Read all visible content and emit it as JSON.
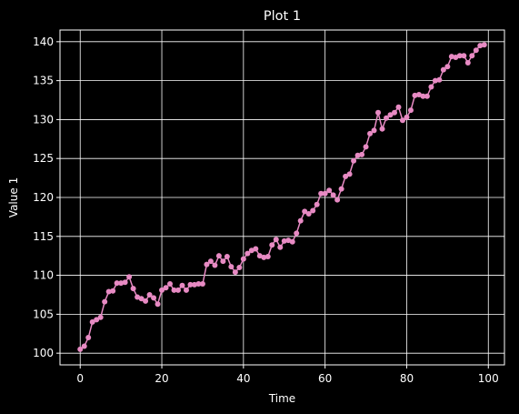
{
  "colors": {
    "background": "#000000",
    "grid": "#ffffff",
    "axes": "#ffffff",
    "series": "#e78ac3"
  },
  "chart_data": {
    "type": "line",
    "title": "Plot 1",
    "xlabel": "Time",
    "ylabel": "Value 1",
    "xlim": [
      -4.95,
      103.95
    ],
    "ylim": [
      98.5,
      141.5
    ],
    "xticks": [
      0,
      20,
      40,
      60,
      80,
      100
    ],
    "yticks": [
      100,
      105,
      110,
      115,
      120,
      125,
      130,
      135,
      140
    ],
    "grid": true,
    "legend": "none",
    "markers": true,
    "series": [
      {
        "x": [
          0,
          1,
          2,
          3,
          4,
          5,
          6,
          7,
          8,
          9,
          10,
          11,
          12,
          13,
          14,
          15,
          16,
          17,
          18,
          19,
          20,
          21,
          22,
          23,
          24,
          25,
          26,
          27,
          28,
          29,
          30,
          31,
          32,
          33,
          34,
          35,
          36,
          37,
          38,
          39,
          40,
          41,
          42,
          43,
          44,
          45,
          46,
          47,
          48,
          49,
          50,
          51,
          52,
          53,
          54,
          55,
          56,
          57,
          58,
          59,
          60,
          61,
          62,
          63,
          64,
          65,
          66,
          67,
          68,
          69,
          70,
          71,
          72,
          73,
          74,
          75,
          76,
          77,
          78,
          79,
          80,
          81,
          82,
          83,
          84,
          85,
          86,
          87,
          88,
          89,
          90,
          91,
          92,
          93,
          94,
          95,
          96,
          97,
          98,
          99
        ],
        "values": [
          100.5,
          100.9,
          102.0,
          104.0,
          104.3,
          104.6,
          106.6,
          107.9,
          108.0,
          109.0,
          109.0,
          109.1,
          109.8,
          108.3,
          107.2,
          107.0,
          106.7,
          107.5,
          107.1,
          106.3,
          108.1,
          108.4,
          108.9,
          108.1,
          108.1,
          108.7,
          108.1,
          108.8,
          108.8,
          108.9,
          108.9,
          111.4,
          111.8,
          111.3,
          112.5,
          111.8,
          112.4,
          111.1,
          110.4,
          111.0,
          112.1,
          112.8,
          113.2,
          113.4,
          112.5,
          112.3,
          112.4,
          113.9,
          114.6,
          113.6,
          114.4,
          114.5,
          114.3,
          115.4,
          117.0,
          118.2,
          117.9,
          118.3,
          119.1,
          120.5,
          120.5,
          120.9,
          120.3,
          119.7,
          121.1,
          122.7,
          123.0,
          124.7,
          125.4,
          125.5,
          126.5,
          128.2,
          128.6,
          130.9,
          128.8,
          130.2,
          130.6,
          130.9,
          131.6,
          129.9,
          130.3,
          131.2,
          133.1,
          133.2,
          133.0,
          133.0,
          134.2,
          135.0,
          135.1,
          136.4,
          136.8,
          138.1,
          138.0,
          138.2,
          138.2,
          137.3,
          138.2,
          138.9,
          139.5,
          139.6
        ]
      }
    ]
  }
}
